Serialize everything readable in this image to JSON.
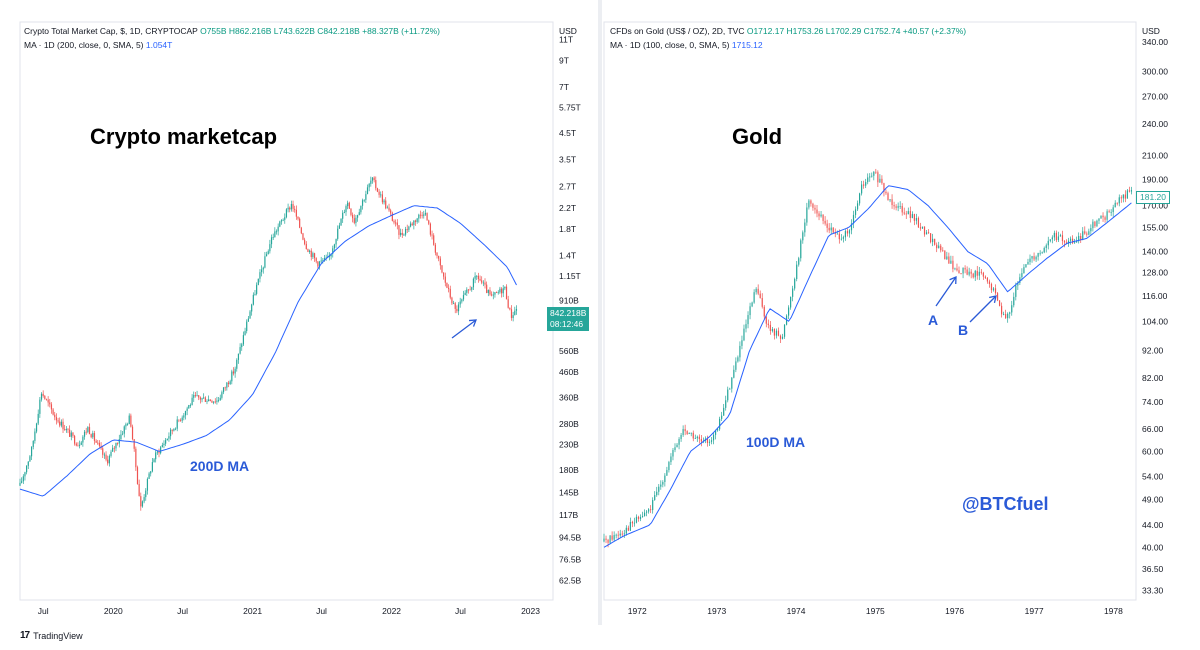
{
  "left": {
    "legend_line1_name": "Crypto Total Market Cap, $, 1D, CRYPTOCAP",
    "legend_line1_values": "O755B  H862.216B  L743.622B  C842.218B  +88.327B (+11.72%)",
    "legend_line2_label": "MA · 1D (200, close, 0, SMA, 5)",
    "legend_line2_value": "1.054T",
    "big_title": "Crypto marketcap",
    "ma_label": "200D MA",
    "currency": "USD",
    "price_label": "842.218B",
    "countdown_label": "08:12:46"
  },
  "right": {
    "legend_line1_name": "CFDs on Gold (US$ / OZ), 2D, TVC",
    "legend_line1_values": "O1712.17  H1753.26  L1702.29  C1752.74  +40.57 (+2.37%)",
    "legend_line2_label": "MA · 1D (100, close, 0, SMA, 5)",
    "legend_line2_value": "1715.12",
    "big_title": "Gold",
    "ma_label": "100D MA",
    "label_a": "A",
    "label_b": "B",
    "handle": "@BTCfuel",
    "currency": "USD",
    "price_label": "181.20"
  },
  "footer": {
    "brand": "TradingView",
    "logo": "17"
  },
  "colors": {
    "up": "#26a69a",
    "down": "#ef5350",
    "ma": "#2962ff",
    "annotation": "#2a5ad7"
  },
  "chart_data": [
    {
      "type": "candlestick",
      "title": "Crypto Total Market Cap, $, 1D, CRYPTOCAP",
      "scale": "log",
      "ylim": [
        52000000000,
        13000000000000
      ],
      "y_tick_labels": [
        "11T",
        "9T",
        "7T",
        "5.75T",
        "4.5T",
        "3.5T",
        "2.7T",
        "2.2T",
        "1.8T",
        "1.4T",
        "1.15T",
        "910B",
        "710B",
        "560B",
        "460B",
        "360B",
        "280B",
        "230B",
        "180B",
        "145B",
        "117B",
        "94.5B",
        "76.5B",
        "62.5B"
      ],
      "y_tick_values": [
        11000000000000.0,
        9000000000000.0,
        7000000000000.0,
        5750000000000.0,
        4500000000000.0,
        3500000000000.0,
        2700000000000.0,
        2200000000000.0,
        1800000000000.0,
        1400000000000.0,
        1150000000000.0,
        910000000000.0,
        710000000000.0,
        560000000000.0,
        460000000000.0,
        360000000000.0,
        280000000000.0,
        230000000000.0,
        180000000000.0,
        145000000000.0,
        117000000000.0,
        94500000000.0,
        76500000000.0,
        62500000000.0
      ],
      "x_range": [
        "2019-05-01",
        "2023-03-01"
      ],
      "x_tick_labels": [
        "Jul",
        "2020",
        "Jul",
        "2021",
        "Jul",
        "2022",
        "Jul",
        "2023"
      ],
      "x_tick_dates": [
        "2019-07-01",
        "2020-01-01",
        "2020-07-01",
        "2021-01-01",
        "2021-07-01",
        "2022-01-01",
        "2022-07-01",
        "2023-01-01"
      ],
      "price_path_dates": [
        "2019-05-01",
        "2019-06-01",
        "2019-06-26",
        "2019-08-01",
        "2019-10-01",
        "2019-10-26",
        "2019-12-15",
        "2020-02-14",
        "2020-03-13",
        "2020-04-15",
        "2020-06-01",
        "2020-08-01",
        "2020-10-01",
        "2020-11-15",
        "2021-01-08",
        "2021-02-20",
        "2021-04-14",
        "2021-05-20",
        "2021-06-20",
        "2021-07-20",
        "2021-09-06",
        "2021-09-25",
        "2021-11-10",
        "2021-12-20",
        "2022-01-24",
        "2022-03-28",
        "2022-05-12",
        "2022-06-18",
        "2022-08-14",
        "2022-09-20",
        "2022-10-25",
        "2022-11-10",
        "2022-11-25"
      ],
      "price_path_values": [
        155000000000.0,
        220000000000.0,
        380000000000.0,
        300000000000.0,
        230000000000.0,
        270000000000.0,
        195000000000.0,
        300000000000.0,
        125000000000.0,
        200000000000.0,
        260000000000.0,
        360000000000.0,
        350000000000.0,
        470000000000.0,
        1000000000000.0,
        1650000000000.0,
        2300000000000.0,
        1550000000000.0,
        1300000000000.0,
        1350000000000.0,
        2350000000000.0,
        1950000000000.0,
        2900000000000.0,
        2200000000000.0,
        1700000000000.0,
        2150000000000.0,
        1200000000000.0,
        820000000000.0,
        1150000000000.0,
        930000000000.0,
        1030000000000.0,
        780000000000.0,
        842000000000.0
      ],
      "ma_path_dates": [
        "2019-05-01",
        "2019-07-01",
        "2019-09-01",
        "2019-11-01",
        "2020-01-01",
        "2020-03-01",
        "2020-05-01",
        "2020-07-01",
        "2020-09-01",
        "2020-11-01",
        "2021-01-01",
        "2021-03-01",
        "2021-05-01",
        "2021-07-01",
        "2021-09-01",
        "2021-11-01",
        "2022-01-01",
        "2022-03-01",
        "2022-05-01",
        "2022-07-01",
        "2022-09-01",
        "2022-11-01",
        "2022-11-25"
      ],
      "ma_path_values": [
        150000000000.0,
        140000000000.0,
        170000000000.0,
        210000000000.0,
        240000000000.0,
        235000000000.0,
        215000000000.0,
        230000000000.0,
        250000000000.0,
        290000000000.0,
        370000000000.0,
        550000000000.0,
        900000000000.0,
        1300000000000.0,
        1600000000000.0,
        1850000000000.0,
        2050000000000.0,
        2250000000000.0,
        2200000000000.0,
        1900000000000.0,
        1550000000000.0,
        1250000000000.0,
        1054000000000.0
      ]
    },
    {
      "type": "candlestick",
      "title": "CFDs on Gold (US$ / OZ), 2D, TVC",
      "scale": "log",
      "ylim": [
        32,
        370
      ],
      "y_tick_labels": [
        "340.00",
        "300.00",
        "270.00",
        "240.00",
        "210.00",
        "190.00",
        "170.00",
        "155.00",
        "140.00",
        "128.00",
        "116.00",
        "104.00",
        "92.00",
        "82.00",
        "74.00",
        "66.00",
        "60.00",
        "54.00",
        "49.00",
        "44.00",
        "40.00",
        "36.50",
        "33.30"
      ],
      "y_tick_values": [
        340,
        300,
        270,
        240,
        210,
        190,
        170,
        155,
        140,
        128,
        116,
        104,
        92,
        82,
        74,
        66,
        60,
        54,
        49,
        44,
        40,
        36.5,
        33.3
      ],
      "x_range": [
        "1971-08-01",
        "1978-04-15"
      ],
      "x_tick_labels": [
        "1972",
        "1973",
        "1974",
        "1975",
        "1976",
        "1977",
        "1978"
      ],
      "x_tick_dates": [
        "1972-01-01",
        "1973-01-01",
        "1974-01-01",
        "1975-01-01",
        "1976-01-01",
        "1977-01-01",
        "1978-01-01"
      ],
      "price_path_dates": [
        "1971-08-01",
        "1971-11-01",
        "1972-03-01",
        "1972-06-01",
        "1972-08-01",
        "1972-11-01",
        "1973-01-01",
        "1973-04-01",
        "1973-07-01",
        "1973-09-01",
        "1973-11-01",
        "1974-01-01",
        "1974-03-01",
        "1974-05-01",
        "1974-07-01",
        "1974-09-01",
        "1974-11-01",
        "1974-12-30",
        "1975-03-01",
        "1975-06-01",
        "1975-09-01",
        "1975-11-01",
        "1976-01-01",
        "1976-03-01",
        "1976-05-01",
        "1976-07-01",
        "1976-08-25",
        "1976-10-01",
        "1976-12-01",
        "1977-02-01",
        "1977-04-01",
        "1977-06-01",
        "1977-08-01",
        "1977-10-01",
        "1977-12-01",
        "1978-02-01",
        "1978-03-25"
      ],
      "price_path_values": [
        41,
        43,
        47,
        58,
        66,
        62,
        65,
        88,
        120,
        100,
        98,
        130,
        175,
        160,
        150,
        150,
        185,
        195,
        175,
        165,
        150,
        140,
        130,
        128,
        127,
        118,
        104,
        117,
        135,
        140,
        150,
        145,
        148,
        158,
        163,
        175,
        181
      ],
      "ma_path_dates": [
        "1971-08-01",
        "1971-11-01",
        "1972-03-01",
        "1972-06-01",
        "1972-09-01",
        "1972-12-01",
        "1973-03-01",
        "1973-06-01",
        "1973-09-01",
        "1973-12-01",
        "1974-03-01",
        "1974-06-01",
        "1974-09-01",
        "1974-12-01",
        "1975-03-01",
        "1975-06-01",
        "1975-09-01",
        "1975-12-01",
        "1976-03-01",
        "1976-06-01",
        "1976-09-01",
        "1976-12-01",
        "1977-03-01",
        "1977-06-01",
        "1977-09-01",
        "1977-12-01",
        "1978-03-25"
      ],
      "ma_path_values": [
        40,
        42,
        44,
        51,
        60,
        64,
        70,
        92,
        110,
        104,
        125,
        150,
        155,
        168,
        185,
        182,
        170,
        155,
        140,
        133,
        118,
        127,
        136,
        145,
        148,
        158,
        172
      ]
    }
  ]
}
